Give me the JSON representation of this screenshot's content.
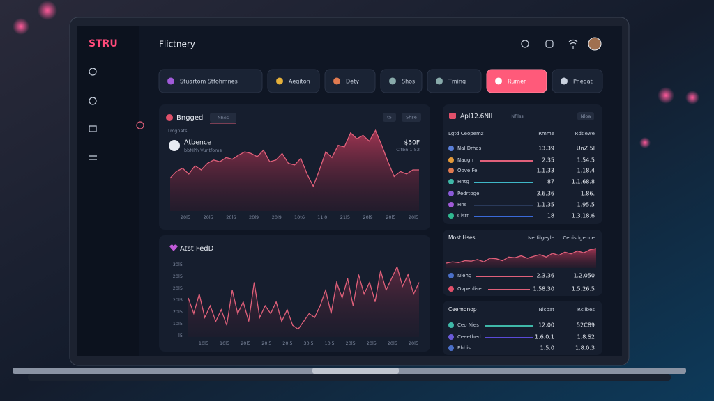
{
  "brand": "STRU",
  "header": {
    "title": "Flictnery"
  },
  "tabs": {
    "items": [
      "Stuartom Stfohmnes",
      "Aegiton",
      "Dety",
      "Shos",
      "Tming",
      "Rumer",
      "Pnegat"
    ],
    "active": 5
  },
  "panel_main": {
    "title": "Bngged",
    "chip": "Nhes",
    "buttons": [
      "t5",
      "Shse"
    ],
    "subtitle": "Tmgnats",
    "user": "Atbence",
    "user_sub": "bbNPh Vuntfoms",
    "value": "$50F",
    "value_sub": "Cltbn 1:52",
    "chart": {
      "type": "area",
      "color": "#e0607a",
      "ylim": [
        0,
        100
      ],
      "values": [
        40,
        48,
        52,
        45,
        55,
        50,
        58,
        62,
        60,
        65,
        63,
        68,
        72,
        70,
        66,
        74,
        60,
        62,
        70,
        58,
        56,
        64,
        45,
        30,
        50,
        72,
        65,
        80,
        78,
        95,
        88,
        92,
        85,
        98,
        80,
        60,
        42,
        48,
        45,
        50,
        50
      ],
      "categories": [
        "20l5",
        "20l5",
        "20l6",
        "20l9",
        "20l9",
        "10t6",
        "11l0",
        "21l5",
        "20l9",
        "20l5",
        "20l5"
      ]
    }
  },
  "panel_feed": {
    "title": "Atst FedD",
    "chart": {
      "type": "line",
      "color": "#e0607a",
      "ylim": [
        0,
        100
      ],
      "values": [
        50,
        30,
        55,
        25,
        40,
        20,
        35,
        15,
        60,
        30,
        45,
        20,
        70,
        25,
        40,
        30,
        45,
        20,
        35,
        15,
        10,
        20,
        30,
        25,
        40,
        60,
        30,
        70,
        50,
        75,
        40,
        80,
        55,
        70,
        45,
        85,
        60,
        75,
        90,
        65,
        80,
        55,
        70
      ],
      "yticks": [
        "30l5",
        "20l5",
        "20l5",
        "20l5",
        "20l5",
        "10l5",
        "-l5"
      ],
      "categories": [
        "10l5",
        "10l5",
        "20l5",
        "20l5",
        "20l5",
        "30l5",
        "10l5",
        "20l5",
        "20l5",
        "20l5",
        "20l5"
      ]
    }
  },
  "table_main": {
    "title": "Apl12.6Nll",
    "chip": "Nfllss",
    "button": "Nloa",
    "columns": [
      "Lgtd Ceopemz",
      "Rmme",
      "Rdtlewe"
    ],
    "rows": [
      {
        "color": "#5a7fd8",
        "cells": [
          "Nal Drhes",
          "13.39",
          "UnZ 5l"
        ]
      },
      {
        "color": "#e59a3a",
        "cells": [
          "Naugh",
          "2.35",
          "1.54.5"
        ]
      },
      {
        "color": "#e07a50",
        "cells": [
          "Oove Fe",
          "1.1.33",
          "1.18.4"
        ]
      },
      {
        "color": "#3fb8a8",
        "cells": [
          "Hntg",
          "87",
          "1.1.68.8"
        ]
      },
      {
        "color": "#8a5ad8",
        "cells": [
          "Pedrtoge",
          "3.6.36",
          "1.86."
        ]
      },
      {
        "color": "#a05ad8",
        "cells": [
          "Hns",
          "1.1.35",
          "1.95.5"
        ]
      },
      {
        "color": "#30b890",
        "cells": [
          "Clstt",
          "18",
          "1.3.18.6"
        ]
      }
    ]
  },
  "table_hses": {
    "title": "Mnst Hses",
    "columns": [
      "Nerfilgeyle",
      "Cenisdgenne"
    ],
    "chart": {
      "type": "area",
      "color": "#e0607a",
      "ylim": [
        0,
        100
      ],
      "values": [
        20,
        25,
        22,
        30,
        28,
        35,
        25,
        40,
        38,
        30,
        45,
        42,
        50,
        40,
        48,
        55,
        45,
        60,
        52,
        65,
        58,
        70,
        62,
        75,
        80
      ]
    },
    "rows": [
      {
        "color": "#4a6fc8",
        "cells": [
          "Nlehg",
          "2.3.36",
          "1.2.050"
        ]
      },
      {
        "color": "#e0506a",
        "cells": [
          "Ovpenlise",
          "1.58.30",
          "1.5.26.5"
        ]
      }
    ]
  },
  "table_drop": {
    "title": "Ceemdnop",
    "columns": [
      "Nlcbat",
      "Rclibes"
    ],
    "rows": [
      {
        "color": "#3fb8a8",
        "cells": [
          "Ceo Nies",
          "12.00",
          "52C89"
        ]
      },
      {
        "color": "#6a5ad8",
        "cells": [
          "Ceeethed",
          "1.6.0.1",
          "1.8.S2"
        ]
      },
      {
        "color": "#4a6fc8",
        "cells": [
          "Ehhis",
          "1.5.0",
          "1.8.0.3"
        ]
      }
    ]
  }
}
